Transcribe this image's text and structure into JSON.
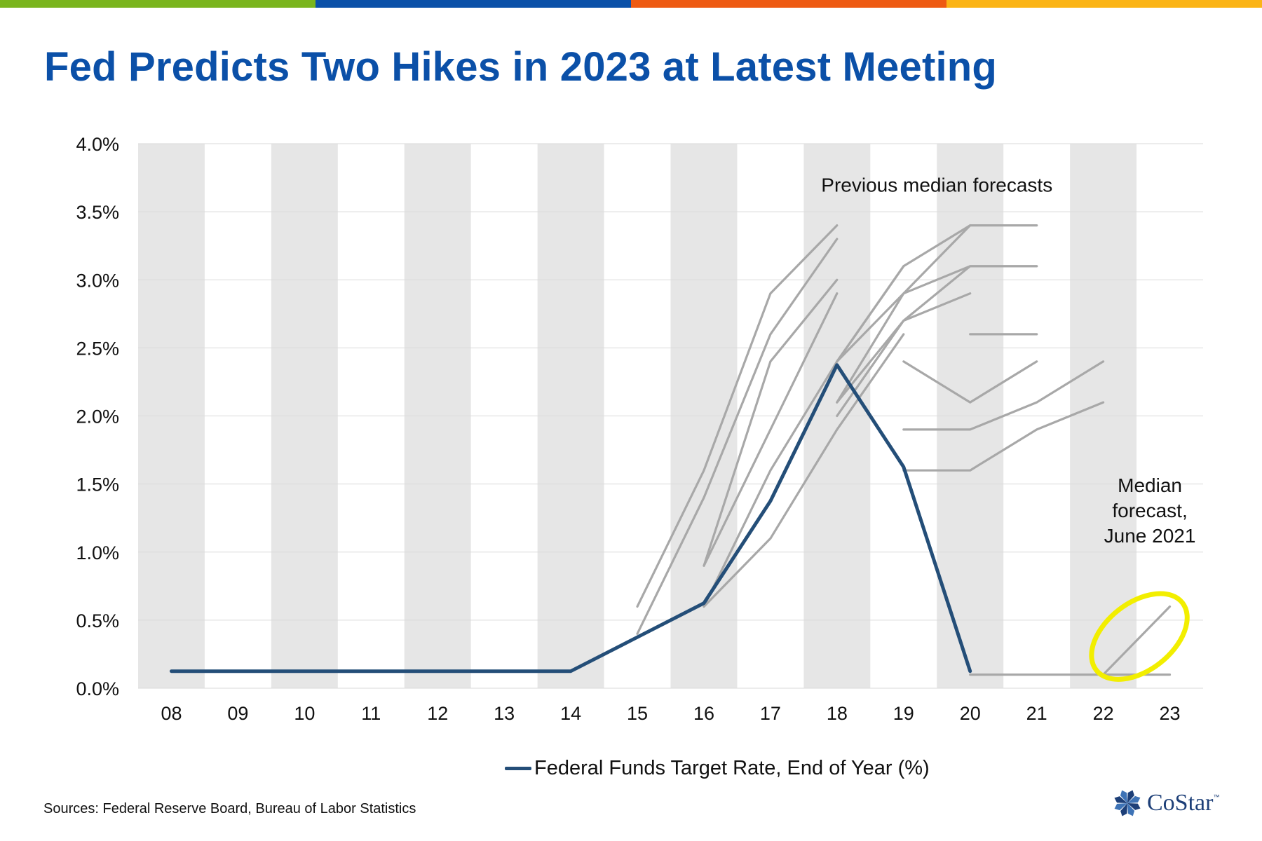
{
  "colors": {
    "title": "#0b50a8",
    "band": "#e6e6e6",
    "grid": "#dadada",
    "fed_line": "#244e78",
    "forecast_line": "#a8a8a8",
    "highlight": "#f2ee00",
    "logo": "#1d3f78",
    "topbar": [
      "#7ab51d",
      "#0b50a8",
      "#ee5a12",
      "#fbb416"
    ]
  },
  "title": "Fed Predicts Two Hikes in 2023 at Latest Meeting",
  "legend": {
    "label": "Federal Funds Target Rate, End of Year (%)"
  },
  "source": "Sources: Federal Reserve Board, Bureau of Labor Statistics",
  "logo": {
    "text": "CoStar",
    "tm": "™"
  },
  "chart_data": {
    "type": "line",
    "title": "Fed Predicts Two Hikes in 2023 at Latest Meeting",
    "xlabel": "",
    "ylabel": "",
    "categories": [
      "08",
      "09",
      "10",
      "11",
      "12",
      "13",
      "14",
      "15",
      "16",
      "17",
      "18",
      "19",
      "20",
      "21",
      "22",
      "23"
    ],
    "ylim": [
      0,
      4.0
    ],
    "yticks": [
      "0.0%",
      "0.5%",
      "1.0%",
      "1.5%",
      "2.0%",
      "2.5%",
      "3.0%",
      "3.5%",
      "4.0%"
    ],
    "grid": true,
    "legend_position": "bottom-center",
    "series": [
      {
        "name": "Federal Funds Target Rate, End of Year (%)",
        "role": "actual",
        "x": [
          "08",
          "09",
          "10",
          "11",
          "12",
          "13",
          "14",
          "15",
          "16",
          "17",
          "18",
          "19",
          "20"
        ],
        "values": [
          0.125,
          0.125,
          0.125,
          0.125,
          0.125,
          0.125,
          0.125,
          0.375,
          0.625,
          1.375,
          2.375,
          1.625,
          0.125
        ]
      },
      {
        "name": "Previous median forecast",
        "role": "forecast",
        "x": [
          "15",
          "16",
          "17",
          "18"
        ],
        "values": [
          0.6,
          1.6,
          2.9,
          3.4
        ]
      },
      {
        "name": "Previous median forecast",
        "role": "forecast",
        "x": [
          "15",
          "16",
          "17",
          "18"
        ],
        "values": [
          0.4,
          1.4,
          2.6,
          3.3
        ]
      },
      {
        "name": "Previous median forecast",
        "role": "forecast",
        "x": [
          "16",
          "17",
          "18"
        ],
        "values": [
          0.9,
          2.4,
          3.0
        ]
      },
      {
        "name": "Previous median forecast",
        "role": "forecast",
        "x": [
          "16",
          "17",
          "18"
        ],
        "values": [
          0.9,
          1.9,
          2.9
        ]
      },
      {
        "name": "Previous median forecast",
        "role": "forecast",
        "x": [
          "16",
          "17",
          "18",
          "19"
        ],
        "values": [
          0.6,
          1.6,
          2.4,
          3.1
        ]
      },
      {
        "name": "Previous median forecast",
        "role": "forecast",
        "x": [
          "16",
          "17",
          "18",
          "19"
        ],
        "values": [
          0.6,
          1.1,
          1.9,
          2.6
        ]
      },
      {
        "name": "Previous median forecast",
        "role": "forecast",
        "x": [
          "18",
          "19",
          "20",
          "21"
        ],
        "values": [
          2.4,
          3.1,
          3.4,
          3.4
        ]
      },
      {
        "name": "Previous median forecast",
        "role": "forecast",
        "x": [
          "18",
          "19",
          "20"
        ],
        "values": [
          2.1,
          2.9,
          3.4
        ]
      },
      {
        "name": "Previous median forecast",
        "role": "forecast",
        "x": [
          "18",
          "19",
          "20",
          "21"
        ],
        "values": [
          2.4,
          2.9,
          3.1,
          3.1
        ]
      },
      {
        "name": "Previous median forecast",
        "role": "forecast",
        "x": [
          "18",
          "19",
          "20",
          "21"
        ],
        "values": [
          2.0,
          2.7,
          3.1,
          3.1
        ]
      },
      {
        "name": "Previous median forecast",
        "role": "forecast",
        "x": [
          "18",
          "19",
          "20"
        ],
        "values": [
          2.1,
          2.7,
          2.9
        ]
      },
      {
        "name": "Previous median forecast",
        "role": "forecast",
        "x": [
          "20",
          "21"
        ],
        "values": [
          2.6,
          2.6
        ]
      },
      {
        "name": "Previous median forecast",
        "role": "forecast",
        "x": [
          "19",
          "20",
          "21"
        ],
        "values": [
          2.4,
          2.1,
          2.4
        ]
      },
      {
        "name": "Previous median forecast",
        "role": "forecast",
        "x": [
          "19",
          "20",
          "21",
          "22"
        ],
        "values": [
          1.9,
          1.9,
          2.1,
          2.4
        ]
      },
      {
        "name": "Previous median forecast",
        "role": "forecast",
        "x": [
          "19",
          "20",
          "21",
          "22"
        ],
        "values": [
          1.6,
          1.6,
          1.9,
          2.1
        ]
      },
      {
        "name": "Previous median forecast",
        "role": "forecast",
        "x": [
          "20",
          "21",
          "22",
          "23"
        ],
        "values": [
          0.1,
          0.1,
          0.1,
          0.1
        ]
      },
      {
        "name": "Median forecast, June 2021",
        "role": "forecast",
        "x": [
          "22",
          "23"
        ],
        "values": [
          0.1,
          0.6
        ]
      }
    ],
    "annotations": [
      {
        "text": "Previous median forecasts",
        "x": "19.5",
        "y": 3.7
      },
      {
        "text": "Median forecast, June 2021",
        "lines": [
          "Median",
          "forecast,",
          "June 2021"
        ],
        "x": "22.7",
        "y": 1.2,
        "highlight": "circle around 22–23 forecast"
      }
    ]
  }
}
